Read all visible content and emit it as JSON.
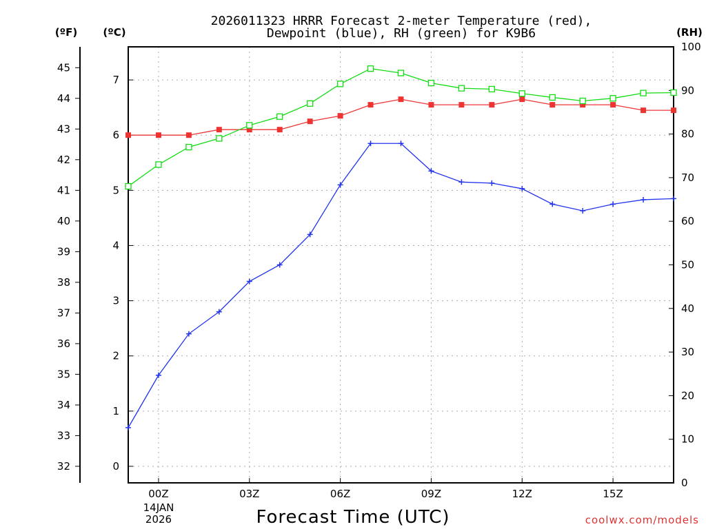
{
  "chart_data": {
    "type": "line",
    "title": [
      "2026011323 HRRR Forecast 2-meter Temperature (red),",
      "Dewpoint (blue), RH (green) for K9B6"
    ],
    "xlabel": "Forecast Time (UTC)",
    "date_label": [
      "14JAN",
      "2026"
    ],
    "credit": "coolwx.com/models",
    "unit_labels": {
      "fahrenheit": "(ºF)",
      "celsius": "(ºC)",
      "rh": "(RH)"
    },
    "x_hours": [
      -1,
      0,
      1,
      2,
      3,
      4,
      5,
      6,
      7,
      8,
      9,
      10,
      11,
      12,
      13,
      14,
      15,
      16,
      17
    ],
    "x_ticks": [
      {
        "hour": 0,
        "label": "00Z"
      },
      {
        "hour": 3,
        "label": "03Z"
      },
      {
        "hour": 6,
        "label": "06Z"
      },
      {
        "hour": 9,
        "label": "09Z"
      },
      {
        "hour": 12,
        "label": "12Z"
      },
      {
        "hour": 15,
        "label": "15Z"
      }
    ],
    "xlim": [
      -1,
      17
    ],
    "y_celsius": {
      "lim": [
        -0.3,
        7.6
      ],
      "ticks": [
        0,
        1,
        2,
        3,
        4,
        5,
        6,
        7
      ]
    },
    "y_fahrenheit": {
      "ticks": [
        32,
        33,
        34,
        35,
        36,
        37,
        38,
        39,
        40,
        41,
        42,
        43,
        44,
        45
      ]
    },
    "y_rh": {
      "lim": [
        0,
        100
      ],
      "ticks": [
        0,
        10,
        20,
        30,
        40,
        50,
        60,
        70,
        80,
        90,
        100
      ]
    },
    "grid": true,
    "series": [
      {
        "name": "Temperature",
        "axis": "celsius",
        "color": "#ee3333",
        "marker": "filled-square",
        "values": [
          6.0,
          6.0,
          6.0,
          6.1,
          6.1,
          6.1,
          6.25,
          6.35,
          6.55,
          6.65,
          6.55,
          6.55,
          6.55,
          6.65,
          6.55,
          6.55,
          6.55,
          6.45,
          6.45
        ]
      },
      {
        "name": "Dewpoint",
        "axis": "celsius",
        "color": "#2233ee",
        "marker": "plus",
        "values": [
          0.7,
          1.65,
          2.4,
          2.8,
          3.35,
          3.65,
          4.2,
          5.1,
          5.85,
          5.85,
          5.35,
          5.15,
          5.13,
          5.03,
          4.75,
          4.63,
          4.75,
          4.83,
          4.85
        ]
      },
      {
        "name": "RH",
        "axis": "rh",
        "color": "#11dd11",
        "marker": "open-square",
        "values": [
          68,
          73,
          77,
          79,
          82,
          84,
          87,
          91.5,
          95,
          94,
          91.7,
          90.5,
          90.3,
          89.3,
          88.4,
          87.6,
          88.2,
          89.4,
          89.5
        ]
      }
    ]
  }
}
